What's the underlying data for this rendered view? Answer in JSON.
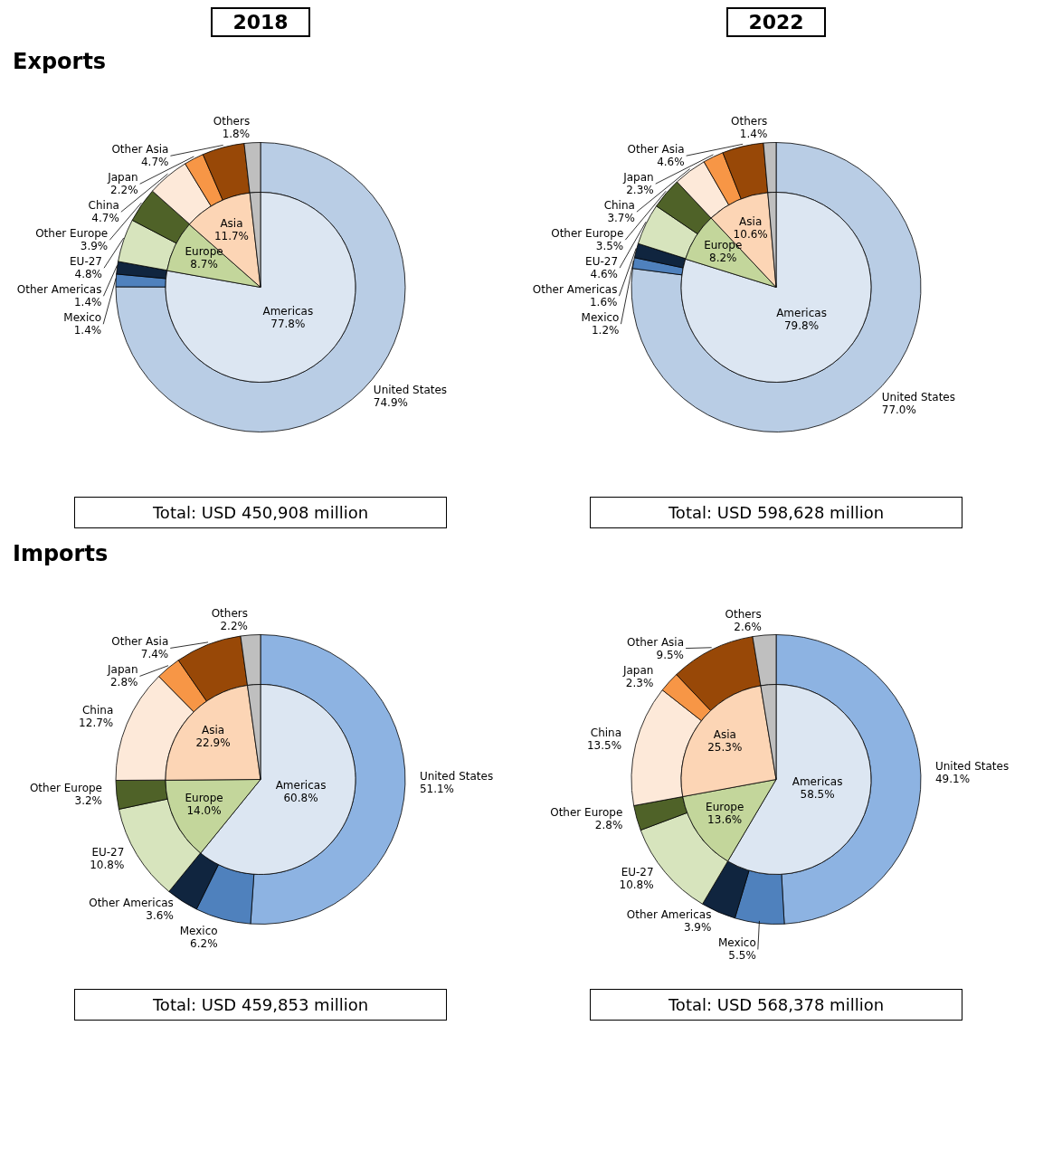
{
  "chart_data": [
    {
      "type": "donut",
      "title": "2018",
      "subtitle": "Exports",
      "annotations": [
        "Total: USD 450,908 million"
      ],
      "categories": [
        "United States",
        "Mexico",
        "Other Americas",
        "EU-27",
        "Other Europe",
        "China",
        "Japan",
        "Other Asia",
        "Others"
      ],
      "values": [
        74.9,
        1.4,
        1.4,
        4.8,
        3.9,
        4.7,
        2.2,
        4.7,
        1.8
      ],
      "colors": [
        "#b9cde5",
        "#4f81bd",
        "#10253f",
        "#d7e4bd",
        "#4f6228",
        "#fde9d9",
        "#f79646",
        "#984807",
        "#bfbfbf"
      ],
      "value_labels": [
        "74.9%",
        "1.4%",
        "1.4%",
        "4.8%",
        "3.9%",
        "4.7%",
        "2.2%",
        "4.7%",
        "1.8%"
      ]
    },
    {
      "type": "pie",
      "categories": [
        "Americas",
        "Europe",
        "Asia",
        null
      ],
      "values": [
        77.8,
        8.7,
        11.7,
        1.8
      ],
      "colors": [
        "#dce6f2",
        "#c3d69b",
        "#fcd5b5",
        "#bfbfbf"
      ],
      "value_labels": [
        "77.8%",
        "8.7%",
        "11.7%",
        null
      ]
    },
    {
      "type": "donut",
      "title": "2022",
      "annotations": [
        "Total: USD 598,628 million"
      ],
      "categories": [
        "United States",
        "Mexico",
        "Other Americas",
        "EU-27",
        "Other Europe",
        "China",
        "Japan",
        "Other Asia",
        "Others"
      ],
      "values": [
        77.0,
        1.2,
        1.6,
        4.6,
        3.5,
        3.7,
        2.3,
        4.6,
        1.4
      ],
      "colors": [
        "#b9cde5",
        "#4f81bd",
        "#10253f",
        "#d7e4bd",
        "#4f6228",
        "#fde9d9",
        "#f79646",
        "#984807",
        "#bfbfbf"
      ],
      "value_labels": [
        "77.0%",
        "1.2%",
        "1.6%",
        "4.6%",
        "3.5%",
        "3.7%",
        "2.3%",
        "4.6%",
        "1.4%"
      ]
    },
    {
      "type": "pie",
      "categories": [
        "Americas",
        "Europe",
        "Asia",
        null
      ],
      "values": [
        79.8,
        8.2,
        10.6,
        1.4
      ],
      "colors": [
        "#dce6f2",
        "#c3d69b",
        "#fcd5b5",
        "#bfbfbf"
      ],
      "value_labels": [
        "79.8%",
        "8.2%",
        "10.6%",
        null
      ]
    },
    {
      "type": "donut",
      "subtitle": "Imports",
      "annotations": [
        "Total: USD 459,853 million"
      ],
      "categories": [
        "United States",
        "Mexico",
        "Other Americas",
        "EU-27",
        "Other Europe",
        "China",
        "Japan",
        "Other Asia",
        "Others"
      ],
      "values": [
        51.1,
        6.2,
        3.6,
        10.8,
        3.2,
        12.7,
        2.8,
        7.4,
        2.2
      ],
      "colors": [
        "#8db3e2",
        "#4f81bd",
        "#10253f",
        "#d7e4bd",
        "#4f6228",
        "#fde9d9",
        "#f79646",
        "#984807",
        "#bfbfbf"
      ],
      "value_labels": [
        "51.1%",
        "6.2%",
        "3.6%",
        "10.8%",
        "3.2%",
        "12.7%",
        "2.8%",
        "7.4%",
        "2.2%"
      ]
    },
    {
      "type": "pie",
      "categories": [
        "Americas",
        "Europe",
        "Asia",
        null
      ],
      "values": [
        60.8,
        14.0,
        22.9,
        2.2
      ],
      "colors": [
        "#dce6f2",
        "#c3d69b",
        "#fcd5b5",
        "#bfbfbf"
      ],
      "value_labels": [
        "60.8%",
        "14.0%",
        "22.9%",
        null
      ]
    },
    {
      "type": "donut",
      "annotations": [
        "Total: USD 568,378 million"
      ],
      "categories": [
        "United States",
        "Mexico",
        "Other Americas",
        "EU-27",
        "Other Europe",
        "China",
        "Japan",
        "Other Asia",
        "Others"
      ],
      "values": [
        49.1,
        5.5,
        3.9,
        10.8,
        2.8,
        13.5,
        2.3,
        9.5,
        2.6
      ],
      "colors": [
        "#8db3e2",
        "#4f81bd",
        "#10253f",
        "#d7e4bd",
        "#4f6228",
        "#fde9d9",
        "#f79646",
        "#984807",
        "#bfbfbf"
      ],
      "value_labels": [
        "49.1%",
        "5.5%",
        "3.9%",
        "10.8%",
        "2.8%",
        "13.5%",
        "2.3%",
        "9.5%",
        "2.6%"
      ]
    },
    {
      "type": "pie",
      "categories": [
        "Americas",
        "Europe",
        "Asia",
        null
      ],
      "values": [
        58.5,
        13.6,
        25.3,
        2.6
      ],
      "colors": [
        "#dce6f2",
        "#c3d69b",
        "#fcd5b5",
        "#bfbfbf"
      ],
      "value_labels": [
        "58.5%",
        "13.6%",
        "25.3%",
        null
      ]
    }
  ]
}
